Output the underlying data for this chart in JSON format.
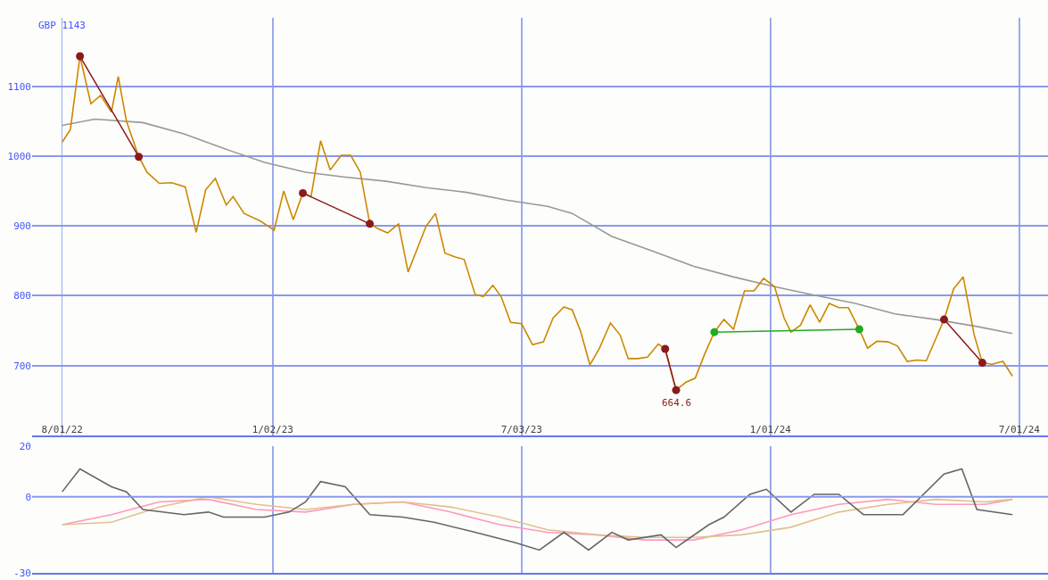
{
  "chart_data": [
    {
      "type": "line",
      "xlim": [
        "2022-07-10",
        "2024-07-22"
      ],
      "ylim": [
        600,
        1198
      ],
      "xticks": [
        {
          "value": "2022-08-01",
          "label": "8/01/22"
        },
        {
          "value": "2023-01-02",
          "label": "1/02/23"
        },
        {
          "value": "2023-07-03",
          "label": "7/03/23"
        },
        {
          "value": "2024-01-01",
          "label": "1/01/24"
        },
        {
          "value": "2024-07-01",
          "label": "7/01/24"
        }
      ],
      "yticks": [
        700,
        800,
        900,
        1000,
        1100
      ],
      "grid": true,
      "marker": "none",
      "line_style": "solid",
      "annotations": [
        "GBP 1143",
        {
          "text": "664.6",
          "x": "2023-10-24",
          "y": 665
        }
      ],
      "series": [
        {
          "color": "#999999",
          "x": [
            "2022-08-01",
            "2022-08-25",
            "2022-09-29",
            "2022-10-29",
            "2022-11-27",
            "2022-12-27",
            "2023-01-26",
            "2023-02-24",
            "2023-03-26",
            "2023-04-24",
            "2023-05-24",
            "2023-06-22",
            "2023-07-22",
            "2023-08-09",
            "2023-09-07",
            "2023-10-07",
            "2023-11-06",
            "2023-12-05",
            "2024-01-04",
            "2024-02-02",
            "2024-03-03",
            "2024-04-01",
            "2024-05-01",
            "2024-05-31",
            "2024-06-26"
          ],
          "values": [
            1044,
            1053,
            1048,
            1032,
            1011,
            991,
            977,
            970,
            964,
            955,
            948,
            937,
            928,
            918,
            885,
            864,
            842,
            827,
            813,
            801,
            789,
            774,
            766,
            756,
            746
          ]
        },
        {
          "color": "#cc8800",
          "x": [
            "2022-08-01",
            "2022-08-07",
            "2022-08-14",
            "2022-08-22",
            "2022-08-29",
            "2022-09-06",
            "2022-09-11",
            "2022-09-17",
            "2022-09-26",
            "2022-10-02",
            "2022-10-11",
            "2022-10-20",
            "2022-10-30",
            "2022-11-07",
            "2022-11-14",
            "2022-11-21",
            "2022-11-29",
            "2022-12-04",
            "2022-12-12",
            "2022-12-24",
            "2023-01-03",
            "2023-01-10",
            "2023-01-17",
            "2023-01-24",
            "2023-01-30",
            "2023-02-06",
            "2023-02-13",
            "2023-02-21",
            "2023-02-28",
            "2023-03-07",
            "2023-03-14",
            "2023-03-20",
            "2023-03-27",
            "2023-04-04",
            "2023-04-11",
            "2023-04-18",
            "2023-04-24",
            "2023-05-01",
            "2023-05-08",
            "2023-05-15",
            "2023-05-22",
            "2023-05-30",
            "2023-06-05",
            "2023-06-12",
            "2023-06-18",
            "2023-06-25",
            "2023-07-03",
            "2023-07-11",
            "2023-07-19",
            "2023-07-26",
            "2023-08-03",
            "2023-08-09",
            "2023-08-15",
            "2023-08-22",
            "2023-08-29",
            "2023-09-06",
            "2023-09-13",
            "2023-09-19",
            "2023-09-26",
            "2023-10-03",
            "2023-10-11",
            "2023-10-16",
            "2023-10-24",
            "2023-10-31",
            "2023-11-07",
            "2023-11-14",
            "2023-11-21",
            "2023-11-28",
            "2023-12-05",
            "2023-12-13",
            "2023-12-20",
            "2023-12-27",
            "2024-01-04",
            "2024-01-11",
            "2024-01-16",
            "2024-01-23",
            "2024-01-30",
            "2024-02-06",
            "2024-02-13",
            "2024-02-20",
            "2024-02-27",
            "2024-03-06",
            "2024-03-12",
            "2024-03-19",
            "2024-03-27",
            "2024-04-03",
            "2024-04-10",
            "2024-04-17",
            "2024-04-24",
            "2024-05-07",
            "2024-05-14",
            "2024-05-21",
            "2024-05-29",
            "2024-06-04",
            "2024-06-11",
            "2024-06-19",
            "2024-06-26"
          ],
          "values": [
            1020,
            1038,
            1143,
            1075,
            1087,
            1063,
            1114,
            1050,
            999,
            977,
            961,
            962,
            956,
            891,
            952,
            968,
            930,
            942,
            918,
            907,
            894,
            950,
            909,
            947,
            942,
            1022,
            980,
            1001,
            1001,
            977,
            903,
            896,
            890,
            903,
            834,
            869,
            899,
            918,
            861,
            856,
            852,
            802,
            799,
            815,
            799,
            762,
            760,
            730,
            734,
            768,
            784,
            780,
            750,
            701,
            725,
            761,
            744,
            710,
            710,
            712,
            731,
            724,
            665,
            676,
            682,
            717,
            748,
            766,
            752,
            807,
            807,
            825,
            813,
            768,
            748,
            758,
            787,
            762,
            789,
            783,
            783,
            752,
            725,
            735,
            734,
            728,
            706,
            708,
            707,
            766,
            810,
            827,
            744,
            704,
            702,
            706,
            685
          ]
        },
        {
          "color": "#8b1a1a",
          "marker": "circle",
          "x": [
            "2022-08-14",
            "2022-09-26"
          ],
          "values": [
            1143,
            999
          ]
        },
        {
          "color": "#8b1a1a",
          "marker": "circle",
          "x": [
            "2023-01-24",
            "2023-03-14"
          ],
          "values": [
            947,
            903
          ]
        },
        {
          "color": "#8b1a1a",
          "marker": "circle",
          "x": [
            "2023-10-16",
            "2023-10-24"
          ],
          "values": [
            724,
            665
          ]
        },
        {
          "color": "#22aa22",
          "marker": "circle",
          "x": [
            "2023-11-21",
            "2024-03-06"
          ],
          "values": [
            748,
            752
          ]
        },
        {
          "color": "#8b1a1a",
          "marker": "circle",
          "x": [
            "2024-05-07",
            "2024-06-04"
          ],
          "values": [
            766,
            704
          ]
        }
      ]
    },
    {
      "type": "line",
      "xlim": [
        "2022-07-10",
        "2024-07-22"
      ],
      "ylim": [
        -30,
        20
      ],
      "yticks": [
        -30,
        0,
        20
      ],
      "ref_lines": [
        {
          "axis": "y",
          "value": 0,
          "color": "#8899ee"
        }
      ],
      "xticks": [
        {
          "value": "2023-01-02",
          "label": null
        },
        {
          "value": "2023-07-03",
          "label": null
        },
        {
          "value": "2024-01-01",
          "label": null
        }
      ],
      "tick_labels": "y",
      "grid": "x",
      "marker": "none",
      "line_style": "solid",
      "series": [
        {
          "color": "#ff99bb",
          "x": [
            "2022-08-01",
            "2022-09-06",
            "2022-10-11",
            "2022-11-16",
            "2022-12-21",
            "2023-01-26",
            "2023-03-02",
            "2023-04-07",
            "2023-05-12",
            "2023-06-17",
            "2023-07-22",
            "2023-08-27",
            "2023-10-01",
            "2023-11-06",
            "2023-12-11",
            "2024-01-16",
            "2024-02-20",
            "2024-03-27",
            "2024-05-01",
            "2024-06-06",
            "2024-06-26"
          ],
          "values": [
            -11,
            -7,
            -2,
            -1,
            -5,
            -6,
            -3,
            -2,
            -6,
            -11,
            -14,
            -15,
            -17,
            -17,
            -13,
            -7,
            -3,
            -1,
            -3,
            -3,
            -1
          ]
        },
        {
          "color": "#e0c090",
          "x": [
            "2022-08-01",
            "2022-09-06",
            "2022-10-11",
            "2022-11-16",
            "2022-12-21",
            "2023-01-26",
            "2023-03-02",
            "2023-04-07",
            "2023-05-12",
            "2023-06-17",
            "2023-07-22",
            "2023-08-27",
            "2023-10-01",
            "2023-11-06",
            "2023-12-11",
            "2024-01-16",
            "2024-02-20",
            "2024-03-27",
            "2024-05-01",
            "2024-06-06",
            "2024-06-26"
          ],
          "values": [
            -11,
            -10,
            -4,
            0,
            -3,
            -5,
            -3,
            -2,
            -4,
            -8,
            -13,
            -15,
            -16,
            -16,
            -15,
            -12,
            -6,
            -3,
            -1,
            -2,
            -1
          ]
        },
        {
          "color": "#666666",
          "x": [
            "2022-08-01",
            "2022-08-14",
            "2022-09-06",
            "2022-09-17",
            "2022-09-29",
            "2022-10-29",
            "2022-11-16",
            "2022-11-27",
            "2022-12-27",
            "2023-01-14",
            "2023-01-26",
            "2023-02-06",
            "2023-02-24",
            "2023-03-14",
            "2023-04-07",
            "2023-04-30",
            "2023-05-30",
            "2023-06-28",
            "2023-07-16",
            "2023-08-03",
            "2023-08-21",
            "2023-09-07",
            "2023-09-19",
            "2023-10-13",
            "2023-10-24",
            "2023-11-17",
            "2023-11-28",
            "2023-12-17",
            "2023-12-29",
            "2024-01-16",
            "2024-02-02",
            "2024-02-20",
            "2024-03-09",
            "2024-04-07",
            "2024-05-07",
            "2024-05-20",
            "2024-05-31",
            "2024-06-26"
          ],
          "values": [
            2,
            11,
            4,
            2,
            -5,
            -7,
            -6,
            -8,
            -8,
            -6,
            -2,
            6,
            4,
            -7,
            -8,
            -10,
            -14,
            -18,
            -21,
            -14,
            -21,
            -14,
            -17,
            -15,
            -20,
            -11,
            -8,
            1,
            3,
            -6,
            1,
            1,
            -7,
            -7,
            9,
            11,
            -5,
            -7
          ]
        }
      ]
    }
  ]
}
